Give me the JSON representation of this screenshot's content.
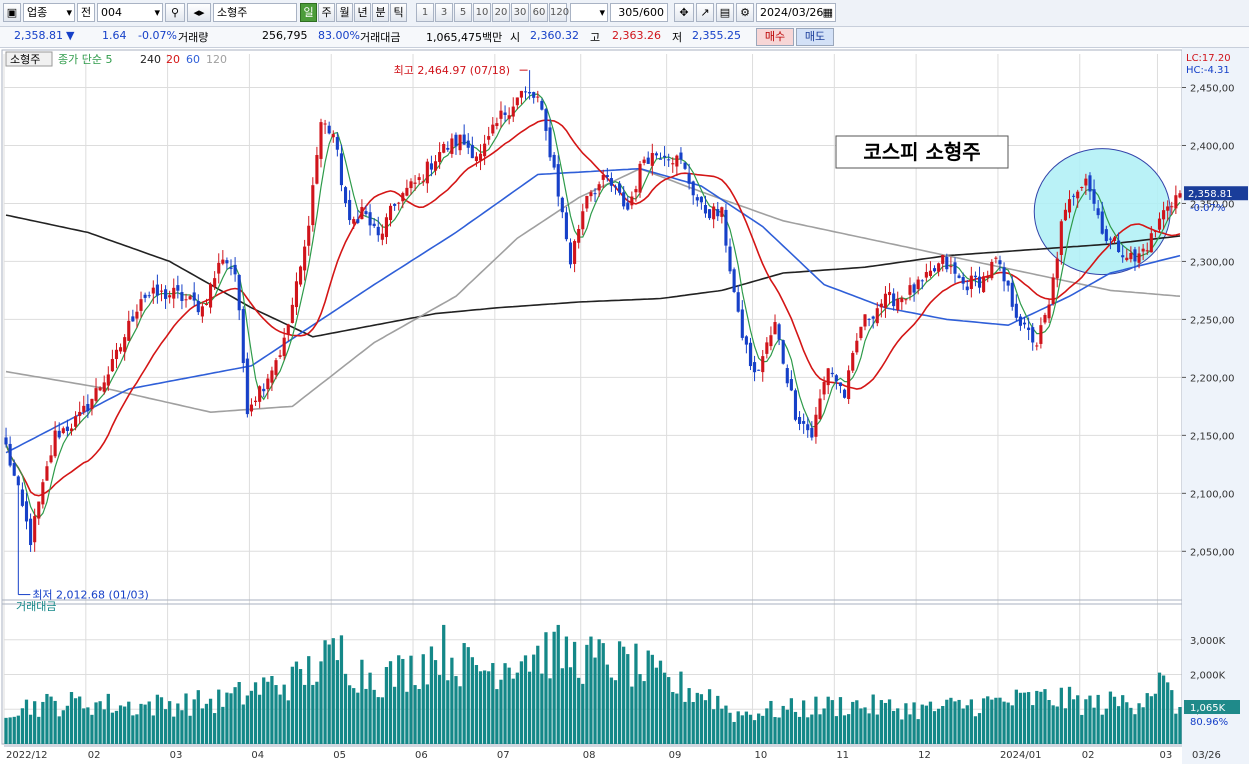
{
  "toolbar": {
    "market_select": "업종",
    "scope_select": "전",
    "code_input": "004",
    "name_field": "소형주",
    "periods": [
      "일",
      "주",
      "월",
      "년",
      "분",
      "틱"
    ],
    "active_period": "일",
    "intervals": [
      "1",
      "3",
      "5",
      "10",
      "20",
      "30",
      "60",
      "120"
    ],
    "range": "305/600",
    "date": "2024/03/26"
  },
  "quote": {
    "price": "2,358.81",
    "arrow": "▼",
    "change": "1.64",
    "change_pct": "-0.07%",
    "volume_label": "거래량",
    "volume": "256,795",
    "volume_ratio": "83.00%",
    "amount_label": "거래대금",
    "amount": "1,065,475백만",
    "open_label": "시",
    "open": "2,360.32",
    "high_label": "고",
    "high": "2,363.26",
    "low_label": "저",
    "low": "2,355.25",
    "buy_button": "매수",
    "sell_button": "매도"
  },
  "colors": {
    "up": "#d0141b",
    "down": "#1640c8",
    "ma5": "#2e9b4a",
    "ma20": "#d41616",
    "ma60": "#2f5fd8",
    "ma120": "#a0a0a0",
    "ma240": "#222222",
    "volume": "#148888",
    "circle_fill": "#aef0f6"
  },
  "legend": {
    "name": "소형주",
    "prefix": "종가 단순 5",
    "p240": "240",
    "p20": "20",
    "p60": "60",
    "p120": "120"
  },
  "annotations": {
    "high_label": "최고 2,464.97 (07/18)",
    "low_label": "최저 2,012.68 (01/03)",
    "title_box": "코스피 소형주",
    "lc": "LC:17.20",
    "hc": "HC:-4.31",
    "price_tag": "2,358.81",
    "price_tag_pct": "-0.07%"
  },
  "chart_data": [
    {
      "type": "candlestick",
      "title": "",
      "y_ticks": [
        2050,
        2100,
        2150,
        2200,
        2250,
        2300,
        2350,
        2400,
        2450
      ],
      "y_tick_labels": [
        "2,050,00",
        "2,100,00",
        "2,150,00",
        "2,200,00",
        "2,250,00",
        "2,300,00",
        "2,350,00",
        "2,400,00",
        "2,450,00"
      ],
      "ylim": [
        2008,
        2472
      ],
      "x_labels": [
        "2022/12",
        "02",
        "03",
        "04",
        "05",
        "06",
        "07",
        "08",
        "09",
        "10",
        "11",
        "12",
        "2024/01",
        "02",
        "03"
      ],
      "grid": true,
      "close_anchors": [
        [
          0,
          2140
        ],
        [
          6,
          2060
        ],
        [
          12,
          2150
        ],
        [
          18,
          2165
        ],
        [
          26,
          2210
        ],
        [
          33,
          2270
        ],
        [
          41,
          2272
        ],
        [
          48,
          2260
        ],
        [
          53,
          2305
        ],
        [
          56,
          2290
        ],
        [
          59,
          2175
        ],
        [
          63,
          2195
        ],
        [
          68,
          2230
        ],
        [
          73,
          2310
        ],
        [
          77,
          2420
        ],
        [
          80,
          2410
        ],
        [
          84,
          2330
        ],
        [
          87,
          2345
        ],
        [
          91,
          2320
        ],
        [
          96,
          2355
        ],
        [
          101,
          2370
        ],
        [
          106,
          2395
        ],
        [
          111,
          2405
        ],
        [
          116,
          2390
        ],
        [
          121,
          2425
        ],
        [
          126,
          2445
        ],
        [
          130,
          2440
        ],
        [
          134,
          2380
        ],
        [
          138,
          2300
        ],
        [
          142,
          2360
        ],
        [
          147,
          2370
        ],
        [
          152,
          2345
        ],
        [
          156,
          2390
        ],
        [
          161,
          2395
        ],
        [
          165,
          2385
        ],
        [
          170,
          2345
        ],
        [
          175,
          2340
        ],
        [
          179,
          2250
        ],
        [
          183,
          2200
        ],
        [
          188,
          2245
        ],
        [
          193,
          2170
        ],
        [
          197,
          2150
        ],
        [
          201,
          2210
        ],
        [
          205,
          2185
        ],
        [
          209,
          2245
        ],
        [
          214,
          2265
        ],
        [
          219,
          2270
        ],
        [
          224,
          2280
        ],
        [
          229,
          2300
        ],
        [
          234,
          2280
        ],
        [
          239,
          2285
        ],
        [
          242,
          2300
        ],
        [
          246,
          2265
        ],
        [
          249,
          2240
        ],
        [
          252,
          2230
        ],
        [
          255,
          2260
        ],
        [
          258,
          2330
        ],
        [
          261,
          2360
        ],
        [
          264,
          2375
        ],
        [
          266,
          2350
        ],
        [
          269,
          2320
        ],
        [
          273,
          2310
        ],
        [
          276,
          2300
        ],
        [
          280,
          2320
        ],
        [
          284,
          2350
        ],
        [
          287,
          2358.81
        ]
      ],
      "series": [
        {
          "name": "5"
        },
        {
          "name": "20"
        },
        {
          "name": "60",
          "points": [
            [
              0,
              2135
            ],
            [
              30,
              2190
            ],
            [
              60,
              2210
            ],
            [
              90,
              2280
            ],
            [
              110,
              2325
            ],
            [
              130,
              2375
            ],
            [
              155,
              2380
            ],
            [
              170,
              2365
            ],
            [
              185,
              2330
            ],
            [
              200,
              2280
            ],
            [
              215,
              2260
            ],
            [
              230,
              2250
            ],
            [
              245,
              2245
            ],
            [
              260,
              2270
            ],
            [
              270,
              2290
            ],
            [
              287,
              2305
            ]
          ]
        },
        {
          "name": "120",
          "points": [
            [
              0,
              2205
            ],
            [
              25,
              2190
            ],
            [
              50,
              2170
            ],
            [
              70,
              2175
            ],
            [
              90,
              2230
            ],
            [
              110,
              2270
            ],
            [
              125,
              2320
            ],
            [
              140,
              2355
            ],
            [
              155,
              2380
            ],
            [
              170,
              2360
            ],
            [
              190,
              2335
            ],
            [
              210,
              2320
            ],
            [
              230,
              2305
            ],
            [
              250,
              2290
            ],
            [
              270,
              2275
            ],
            [
              287,
              2270
            ]
          ]
        },
        {
          "name": "240",
          "points": [
            [
              0,
              2340
            ],
            [
              20,
              2325
            ],
            [
              40,
              2300
            ],
            [
              60,
              2260
            ],
            [
              75,
              2235
            ],
            [
              90,
              2245
            ],
            [
              105,
              2255
            ],
            [
              120,
              2260
            ],
            [
              140,
              2265
            ],
            [
              160,
              2268
            ],
            [
              175,
              2275
            ],
            [
              190,
              2290
            ],
            [
              210,
              2295
            ],
            [
              230,
              2305
            ],
            [
              250,
              2310
            ],
            [
              270,
              2315
            ],
            [
              287,
              2322
            ]
          ]
        }
      ],
      "annotations": [
        {
          "text": "최고 2,464.97 (07/18)",
          "x": 128,
          "y": 2464.97
        },
        {
          "text": "최저 2,012.68 (01/03)",
          "x": 3,
          "y": 2012.68
        }
      ]
    },
    {
      "type": "bar",
      "title": "거래대금",
      "y_ticks": [
        1000,
        2000,
        3000
      ],
      "y_tick_labels": [
        "1,000K",
        "2,000K",
        "3,000K"
      ],
      "ylim": [
        0,
        3800
      ],
      "last_value_label": "1,065K",
      "last_ratio_label": "80.96%",
      "volume_anchors": [
        [
          0,
          1100
        ],
        [
          10,
          1200
        ],
        [
          20,
          1250
        ],
        [
          30,
          1150
        ],
        [
          40,
          1200
        ],
        [
          52,
          1300
        ],
        [
          58,
          1500
        ],
        [
          62,
          1700
        ],
        [
          70,
          1900
        ],
        [
          78,
          2500
        ],
        [
          82,
          2800
        ],
        [
          86,
          2200
        ],
        [
          92,
          2000
        ],
        [
          100,
          2300
        ],
        [
          106,
          2900
        ],
        [
          112,
          2400
        ],
        [
          118,
          2300
        ],
        [
          126,
          2700
        ],
        [
          134,
          2800
        ],
        [
          140,
          2600
        ],
        [
          148,
          2500
        ],
        [
          155,
          2300
        ],
        [
          162,
          1800
        ],
        [
          172,
          1500
        ],
        [
          178,
          900
        ],
        [
          186,
          1000
        ],
        [
          196,
          1100
        ],
        [
          206,
          1200
        ],
        [
          216,
          1100
        ],
        [
          226,
          1050
        ],
        [
          236,
          1200
        ],
        [
          246,
          1300
        ],
        [
          256,
          1400
        ],
        [
          266,
          1200
        ],
        [
          276,
          1300
        ],
        [
          282,
          1900
        ],
        [
          287,
          1050
        ]
      ],
      "x_labels": [
        "2022/12",
        "02",
        "03",
        "04",
        "05",
        "06",
        "07",
        "08",
        "09",
        "10",
        "11",
        "12",
        "2024/01",
        "02",
        "03"
      ],
      "last_date": "03/26"
    }
  ]
}
